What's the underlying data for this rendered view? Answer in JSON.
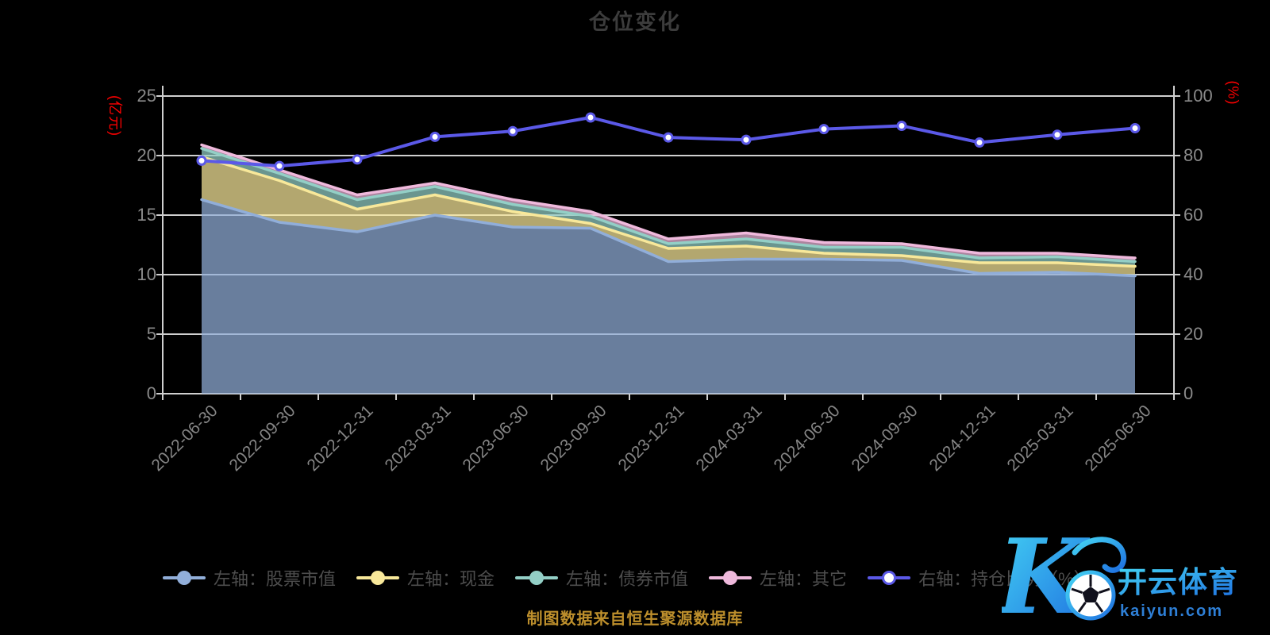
{
  "page": {
    "title": "仓位变化",
    "caption": "制图数据来自恒生聚源数据库",
    "background": "#000000"
  },
  "axes": {
    "left": {
      "unit": "(亿元)",
      "unit_color": "#ff0000",
      "ticks": [
        0,
        5,
        10,
        15,
        20,
        25
      ]
    },
    "right": {
      "unit": "(%)",
      "unit_color": "#ff0000",
      "ticks": [
        0,
        20,
        40,
        60,
        80,
        100
      ]
    },
    "label_color": "#8a8a8a",
    "line_color": "#cfcfcf"
  },
  "legend": {
    "text_color": "#4d4d4d",
    "items": [
      {
        "id": "stock",
        "label": "左轴：股票市值",
        "color": "#91aed9",
        "marker": "filled"
      },
      {
        "id": "cash",
        "label": "左轴：现金",
        "color": "#f8e89a",
        "marker": "filled"
      },
      {
        "id": "bond",
        "label": "左轴：债券市值",
        "color": "#93cfc6",
        "marker": "filled"
      },
      {
        "id": "other",
        "label": "左轴：其它",
        "color": "#efb9dc",
        "marker": "filled"
      },
      {
        "id": "ratio",
        "label": "右轴：持仓比例（%）",
        "color": "#5b59e8",
        "marker": "hollow"
      }
    ]
  },
  "watermark": {
    "brand": "开云体育",
    "domain": "kaiyun.com"
  },
  "chart_data": {
    "type": "area",
    "stacked": true,
    "title": "仓位变化",
    "xlabel": "",
    "ylabel_left": "(亿元)",
    "ylabel_right": "(%)",
    "grid": true,
    "legend_position": "bottom",
    "left_axis_range": [
      0,
      25
    ],
    "right_axis_range": [
      0,
      100
    ],
    "categories": [
      "2022-06-30",
      "2022-09-30",
      "2022-12-31",
      "2023-03-31",
      "2023-06-30",
      "2023-09-30",
      "2023-12-31",
      "2024-03-31",
      "2024-06-30",
      "2024-09-30",
      "2024-12-31",
      "2025-03-31",
      "2025-06-30"
    ],
    "series": [
      {
        "id": "stock",
        "name": "左轴：股票市值",
        "type": "area",
        "axis": "left",
        "color": "#91aed9",
        "values": [
          16.3,
          14.4,
          13.6,
          15.0,
          14.0,
          13.9,
          11.1,
          11.3,
          11.3,
          11.2,
          10.1,
          10.2,
          9.9
        ]
      },
      {
        "id": "cash",
        "name": "左轴：现金",
        "type": "area",
        "axis": "left",
        "color": "#f8e89a",
        "values": [
          3.6,
          3.5,
          1.9,
          1.7,
          1.3,
          0.4,
          1.1,
          1.1,
          0.5,
          0.4,
          0.9,
          0.8,
          0.8
        ]
      },
      {
        "id": "bond",
        "name": "左轴：债券市值",
        "type": "area",
        "axis": "left",
        "color": "#93cfc6",
        "values": [
          0.7,
          0.6,
          0.8,
          0.7,
          0.6,
          0.6,
          0.4,
          0.6,
          0.5,
          0.7,
          0.4,
          0.5,
          0.4
        ]
      },
      {
        "id": "other",
        "name": "左轴：其它",
        "type": "area",
        "axis": "left",
        "color": "#efb9dc",
        "values": [
          0.3,
          0.3,
          0.4,
          0.3,
          0.4,
          0.4,
          0.4,
          0.5,
          0.4,
          0.3,
          0.4,
          0.3,
          0.3
        ]
      },
      {
        "id": "ratio",
        "name": "右轴：持仓比例（%）",
        "type": "line",
        "axis": "right",
        "color": "#5b59e8",
        "values": [
          78.3,
          76.5,
          78.7,
          86.3,
          88.2,
          92.8,
          86.1,
          85.3,
          88.9,
          90.0,
          84.4,
          87.0,
          89.2
        ]
      }
    ]
  }
}
